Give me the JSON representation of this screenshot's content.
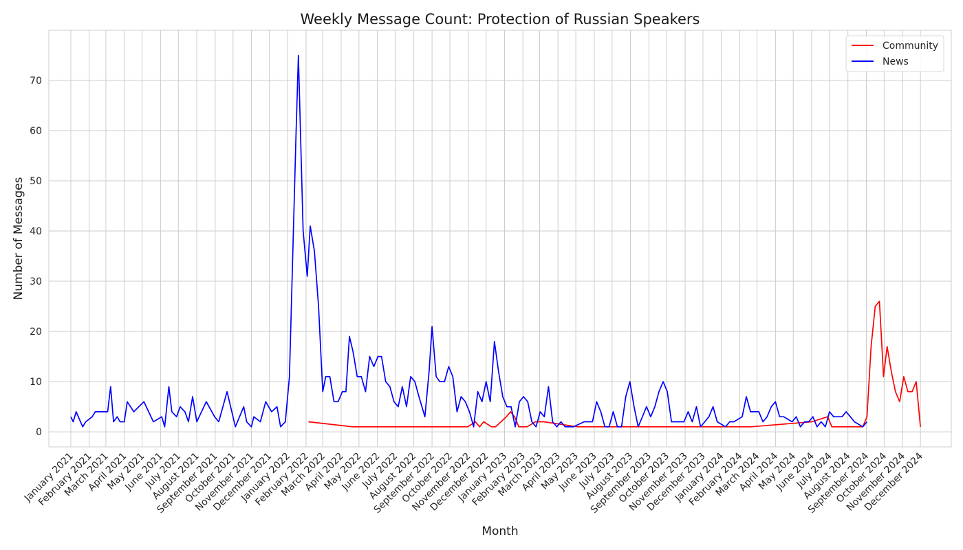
{
  "chart_data": {
    "type": "line",
    "title": "Weekly Message Count: Protection of Russian Speakers",
    "xlabel": "Month",
    "ylabel": "Number of Messages",
    "ylim": [
      -3,
      80
    ],
    "yticks": [
      0,
      10,
      20,
      30,
      40,
      50,
      60,
      70
    ],
    "grid": true,
    "legend_position": "top-right",
    "xlim": [
      "2020-11-25",
      "2025-01-22"
    ],
    "month_ticks": [
      {
        "date": "2021-01-01",
        "label": "January 2021"
      },
      {
        "date": "2021-02-01",
        "label": "February 2021"
      },
      {
        "date": "2021-03-01",
        "label": "March 2021"
      },
      {
        "date": "2021-04-01",
        "label": "April 2021"
      },
      {
        "date": "2021-05-01",
        "label": "May 2021"
      },
      {
        "date": "2021-06-01",
        "label": "June 2021"
      },
      {
        "date": "2021-07-01",
        "label": "July 2021"
      },
      {
        "date": "2021-08-01",
        "label": "August 2021"
      },
      {
        "date": "2021-09-01",
        "label": "September 2021"
      },
      {
        "date": "2021-10-01",
        "label": "October 2021"
      },
      {
        "date": "2021-11-01",
        "label": "November 2021"
      },
      {
        "date": "2021-12-01",
        "label": "December 2021"
      },
      {
        "date": "2022-01-01",
        "label": "January 2022"
      },
      {
        "date": "2022-02-01",
        "label": "February 2022"
      },
      {
        "date": "2022-03-01",
        "label": "March 2022"
      },
      {
        "date": "2022-04-01",
        "label": "April 2022"
      },
      {
        "date": "2022-05-01",
        "label": "May 2022"
      },
      {
        "date": "2022-06-01",
        "label": "June 2022"
      },
      {
        "date": "2022-07-01",
        "label": "July 2022"
      },
      {
        "date": "2022-08-01",
        "label": "August 2022"
      },
      {
        "date": "2022-09-01",
        "label": "September 2022"
      },
      {
        "date": "2022-10-01",
        "label": "October 2022"
      },
      {
        "date": "2022-11-01",
        "label": "November 2022"
      },
      {
        "date": "2022-12-01",
        "label": "December 2022"
      },
      {
        "date": "2023-01-01",
        "label": "January 2023"
      },
      {
        "date": "2023-02-01",
        "label": "February 2023"
      },
      {
        "date": "2023-03-01",
        "label": "March 2023"
      },
      {
        "date": "2023-04-01",
        "label": "April 2023"
      },
      {
        "date": "2023-05-01",
        "label": "May 2023"
      },
      {
        "date": "2023-06-01",
        "label": "June 2023"
      },
      {
        "date": "2023-07-01",
        "label": "July 2023"
      },
      {
        "date": "2023-08-01",
        "label": "August 2023"
      },
      {
        "date": "2023-09-01",
        "label": "September 2023"
      },
      {
        "date": "2023-10-01",
        "label": "October 2023"
      },
      {
        "date": "2023-11-01",
        "label": "November 2023"
      },
      {
        "date": "2023-12-01",
        "label": "December 2023"
      },
      {
        "date": "2024-01-01",
        "label": "January 2024"
      },
      {
        "date": "2024-02-01",
        "label": "February 2024"
      },
      {
        "date": "2024-03-01",
        "label": "March 2024"
      },
      {
        "date": "2024-04-01",
        "label": "April 2024"
      },
      {
        "date": "2024-05-01",
        "label": "May 2024"
      },
      {
        "date": "2024-06-01",
        "label": "June 2024"
      },
      {
        "date": "2024-07-01",
        "label": "July 2024"
      },
      {
        "date": "2024-08-01",
        "label": "August 2024"
      },
      {
        "date": "2024-09-01",
        "label": "September 2024"
      },
      {
        "date": "2024-10-01",
        "label": "October 2024"
      },
      {
        "date": "2024-11-01",
        "label": "November 2024"
      },
      {
        "date": "2024-12-01",
        "label": "December 2024"
      }
    ],
    "series": [
      {
        "name": "Community",
        "color": "#ff0000",
        "points": [
          [
            "2022-02-05",
            2
          ],
          [
            "2022-04-20",
            1
          ],
          [
            "2022-10-31",
            1
          ],
          [
            "2022-11-13",
            2
          ],
          [
            "2022-11-20",
            1
          ],
          [
            "2022-11-27",
            2
          ],
          [
            "2022-12-10",
            1
          ],
          [
            "2022-12-17",
            1
          ],
          [
            "2023-01-04",
            3
          ],
          [
            "2023-01-11",
            4
          ],
          [
            "2023-01-18",
            3
          ],
          [
            "2023-01-25",
            1
          ],
          [
            "2023-02-08",
            1
          ],
          [
            "2023-02-22",
            2
          ],
          [
            "2023-03-08",
            2
          ],
          [
            "2023-05-04",
            1
          ],
          [
            "2024-02-20",
            1
          ],
          [
            "2024-06-01",
            2
          ],
          [
            "2024-06-28",
            3
          ],
          [
            "2024-07-05",
            1
          ],
          [
            "2024-08-15",
            1
          ],
          [
            "2024-08-26",
            1
          ],
          [
            "2024-09-02",
            3
          ],
          [
            "2024-09-09",
            17
          ],
          [
            "2024-09-16",
            25
          ],
          [
            "2024-09-23",
            26
          ],
          [
            "2024-09-30",
            11
          ],
          [
            "2024-10-06",
            17
          ],
          [
            "2024-10-13",
            12
          ],
          [
            "2024-10-20",
            8
          ],
          [
            "2024-10-27",
            6
          ],
          [
            "2024-11-03",
            11
          ],
          [
            "2024-11-10",
            8
          ],
          [
            "2024-11-17",
            8
          ],
          [
            "2024-11-24",
            10
          ],
          [
            "2024-12-01",
            1
          ]
        ]
      },
      {
        "name": "News",
        "color": "#0000ff",
        "points": [
          [
            "2021-01-01",
            3
          ],
          [
            "2021-01-05",
            2
          ],
          [
            "2021-01-10",
            4
          ],
          [
            "2021-01-21",
            1
          ],
          [
            "2021-01-26",
            2
          ],
          [
            "2021-02-06",
            3
          ],
          [
            "2021-02-11",
            4
          ],
          [
            "2021-02-21",
            4
          ],
          [
            "2021-03-04",
            4
          ],
          [
            "2021-03-09",
            9
          ],
          [
            "2021-03-14",
            2
          ],
          [
            "2021-03-20",
            3
          ],
          [
            "2021-03-25",
            2
          ],
          [
            "2021-04-01",
            2
          ],
          [
            "2021-04-06",
            6
          ],
          [
            "2021-04-17",
            4
          ],
          [
            "2021-05-04",
            6
          ],
          [
            "2021-05-20",
            2
          ],
          [
            "2021-06-03",
            3
          ],
          [
            "2021-06-08",
            1
          ],
          [
            "2021-06-15",
            9
          ],
          [
            "2021-06-20",
            4
          ],
          [
            "2021-06-28",
            3
          ],
          [
            "2021-07-04",
            5
          ],
          [
            "2021-07-12",
            4
          ],
          [
            "2021-07-18",
            2
          ],
          [
            "2021-07-25",
            7
          ],
          [
            "2021-08-01",
            2
          ],
          [
            "2021-08-17",
            6
          ],
          [
            "2021-08-31",
            3
          ],
          [
            "2021-09-07",
            2
          ],
          [
            "2021-09-21",
            8
          ],
          [
            "2021-10-05",
            1
          ],
          [
            "2021-10-19",
            5
          ],
          [
            "2021-10-24",
            2
          ],
          [
            "2021-11-01",
            1
          ],
          [
            "2021-11-05",
            3
          ],
          [
            "2021-11-16",
            2
          ],
          [
            "2021-11-25",
            6
          ],
          [
            "2021-12-05",
            4
          ],
          [
            "2021-12-14",
            5
          ],
          [
            "2021-12-20",
            1
          ],
          [
            "2021-12-28",
            2
          ],
          [
            "2022-01-04",
            11
          ],
          [
            "2022-01-15",
            59
          ],
          [
            "2022-01-19",
            75
          ],
          [
            "2022-01-27",
            40
          ],
          [
            "2022-02-03",
            31
          ],
          [
            "2022-02-08",
            41
          ],
          [
            "2022-02-15",
            36
          ],
          [
            "2022-02-22",
            25
          ],
          [
            "2022-03-01",
            8
          ],
          [
            "2022-03-06",
            11
          ],
          [
            "2022-03-13",
            11
          ],
          [
            "2022-03-20",
            6
          ],
          [
            "2022-03-27",
            6
          ],
          [
            "2022-04-03",
            8
          ],
          [
            "2022-04-09",
            8
          ],
          [
            "2022-04-15",
            19
          ],
          [
            "2022-04-21",
            16
          ],
          [
            "2022-04-28",
            11
          ],
          [
            "2022-05-05",
            11
          ],
          [
            "2022-05-12",
            8
          ],
          [
            "2022-05-19",
            15
          ],
          [
            "2022-05-26",
            13
          ],
          [
            "2022-06-02",
            15
          ],
          [
            "2022-06-08",
            15
          ],
          [
            "2022-06-15",
            10
          ],
          [
            "2022-06-22",
            9
          ],
          [
            "2022-06-29",
            6
          ],
          [
            "2022-07-06",
            5
          ],
          [
            "2022-07-13",
            9
          ],
          [
            "2022-07-20",
            5
          ],
          [
            "2022-07-27",
            11
          ],
          [
            "2022-08-03",
            10
          ],
          [
            "2022-08-10",
            7
          ],
          [
            "2022-08-20",
            3
          ],
          [
            "2022-08-27",
            12
          ],
          [
            "2022-09-01",
            21
          ],
          [
            "2022-09-08",
            11
          ],
          [
            "2022-09-14",
            10
          ],
          [
            "2022-09-22",
            10
          ],
          [
            "2022-09-29",
            13
          ],
          [
            "2022-10-06",
            11
          ],
          [
            "2022-10-13",
            4
          ],
          [
            "2022-10-20",
            7
          ],
          [
            "2022-10-27",
            6
          ],
          [
            "2022-11-03",
            4
          ],
          [
            "2022-11-10",
            1
          ],
          [
            "2022-11-17",
            8
          ],
          [
            "2022-11-24",
            6
          ],
          [
            "2022-12-01",
            10
          ],
          [
            "2022-12-08",
            6
          ],
          [
            "2022-12-15",
            18
          ],
          [
            "2022-12-22",
            12
          ],
          [
            "2022-12-29",
            7
          ],
          [
            "2023-01-05",
            5
          ],
          [
            "2023-01-12",
            5
          ],
          [
            "2023-01-19",
            1
          ],
          [
            "2023-01-26",
            6
          ],
          [
            "2023-02-02",
            7
          ],
          [
            "2023-02-09",
            6
          ],
          [
            "2023-02-16",
            2
          ],
          [
            "2023-02-23",
            1
          ],
          [
            "2023-03-02",
            4
          ],
          [
            "2023-03-09",
            3
          ],
          [
            "2023-03-16",
            9
          ],
          [
            "2023-03-23",
            2
          ],
          [
            "2023-03-30",
            1
          ],
          [
            "2023-04-06",
            2
          ],
          [
            "2023-04-13",
            1
          ],
          [
            "2023-04-27",
            1
          ],
          [
            "2023-05-15",
            2
          ],
          [
            "2023-05-29",
            2
          ],
          [
            "2023-06-05",
            6
          ],
          [
            "2023-06-12",
            4
          ],
          [
            "2023-06-19",
            1
          ],
          [
            "2023-06-26",
            1
          ],
          [
            "2023-07-03",
            4
          ],
          [
            "2023-07-10",
            1
          ],
          [
            "2023-07-17",
            1
          ],
          [
            "2023-07-24",
            7
          ],
          [
            "2023-07-31",
            10
          ],
          [
            "2023-08-07",
            5
          ],
          [
            "2023-08-14",
            1
          ],
          [
            "2023-08-21",
            3
          ],
          [
            "2023-08-28",
            5
          ],
          [
            "2023-09-04",
            3
          ],
          [
            "2023-09-11",
            5
          ],
          [
            "2023-09-18",
            8
          ],
          [
            "2023-09-25",
            10
          ],
          [
            "2023-10-02",
            8
          ],
          [
            "2023-10-09",
            2
          ],
          [
            "2023-10-16",
            2
          ],
          [
            "2023-10-30",
            2
          ],
          [
            "2023-11-06",
            4
          ],
          [
            "2023-11-13",
            2
          ],
          [
            "2023-11-20",
            5
          ],
          [
            "2023-11-27",
            1
          ],
          [
            "2023-12-04",
            2
          ],
          [
            "2023-12-11",
            3
          ],
          [
            "2023-12-18",
            5
          ],
          [
            "2023-12-25",
            2
          ],
          [
            "2024-01-08",
            1
          ],
          [
            "2024-01-15",
            2
          ],
          [
            "2024-01-22",
            2
          ],
          [
            "2024-02-05",
            3
          ],
          [
            "2024-02-12",
            7
          ],
          [
            "2024-02-19",
            4
          ],
          [
            "2024-02-26",
            4
          ],
          [
            "2024-03-04",
            4
          ],
          [
            "2024-03-11",
            2
          ],
          [
            "2024-03-18",
            3
          ],
          [
            "2024-03-25",
            5
          ],
          [
            "2024-04-01",
            6
          ],
          [
            "2024-04-08",
            3
          ],
          [
            "2024-04-15",
            3
          ],
          [
            "2024-04-29",
            2
          ],
          [
            "2024-05-06",
            3
          ],
          [
            "2024-05-13",
            1
          ],
          [
            "2024-05-20",
            2
          ],
          [
            "2024-05-27",
            2
          ],
          [
            "2024-06-03",
            3
          ],
          [
            "2024-06-10",
            1
          ],
          [
            "2024-06-17",
            2
          ],
          [
            "2024-06-24",
            1
          ],
          [
            "2024-07-01",
            4
          ],
          [
            "2024-07-08",
            3
          ],
          [
            "2024-07-15",
            3
          ],
          [
            "2024-07-22",
            3
          ],
          [
            "2024-07-29",
            4
          ],
          [
            "2024-08-05",
            3
          ],
          [
            "2024-08-12",
            2
          ],
          [
            "2024-08-26",
            1
          ],
          [
            "2024-09-02",
            2
          ]
        ]
      }
    ]
  }
}
